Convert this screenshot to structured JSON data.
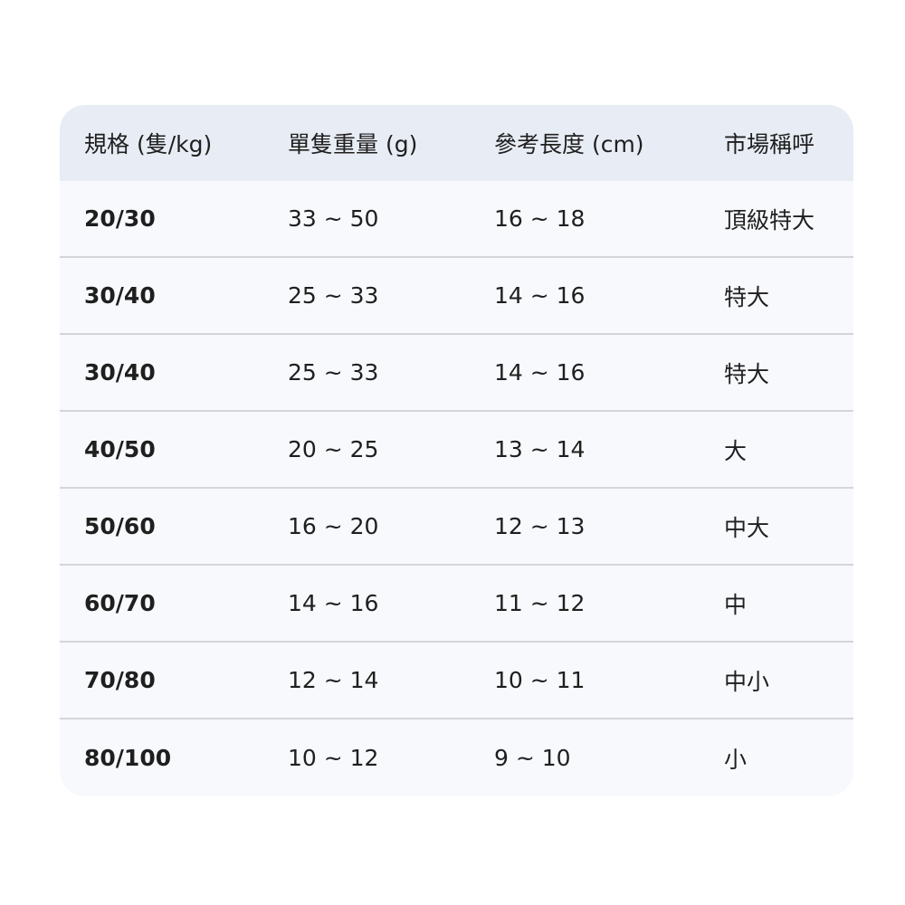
{
  "table": {
    "headers": [
      "規格 (隻/kg)",
      "單隻重量 (g)",
      "參考長度 (cm)",
      "市場稱呼"
    ],
    "rows": [
      [
        "20/30",
        "33 ~ 50",
        "16 ~ 18",
        "頂級特大"
      ],
      [
        "30/40",
        "25 ~ 33",
        "14 ~ 16",
        "特大"
      ],
      [
        "30/40",
        "25 ~ 33",
        "14 ~ 16",
        "特大"
      ],
      [
        "40/50",
        "20 ~ 25",
        "13 ~ 14",
        "大"
      ],
      [
        "50/60",
        "16 ~ 20",
        "12 ~ 13",
        "中大"
      ],
      [
        "60/70",
        "14 ~ 16",
        "11 ~ 12",
        "中"
      ],
      [
        "70/80",
        "12 ~ 14",
        "10 ~ 11",
        "中小"
      ],
      [
        "80/100",
        "10 ~ 12",
        "9 ~ 10",
        "小"
      ]
    ]
  },
  "colors": {
    "header_bg": "#e8ecf5",
    "row_bg": "#f8f9fc",
    "divider": "#d3d5da"
  }
}
